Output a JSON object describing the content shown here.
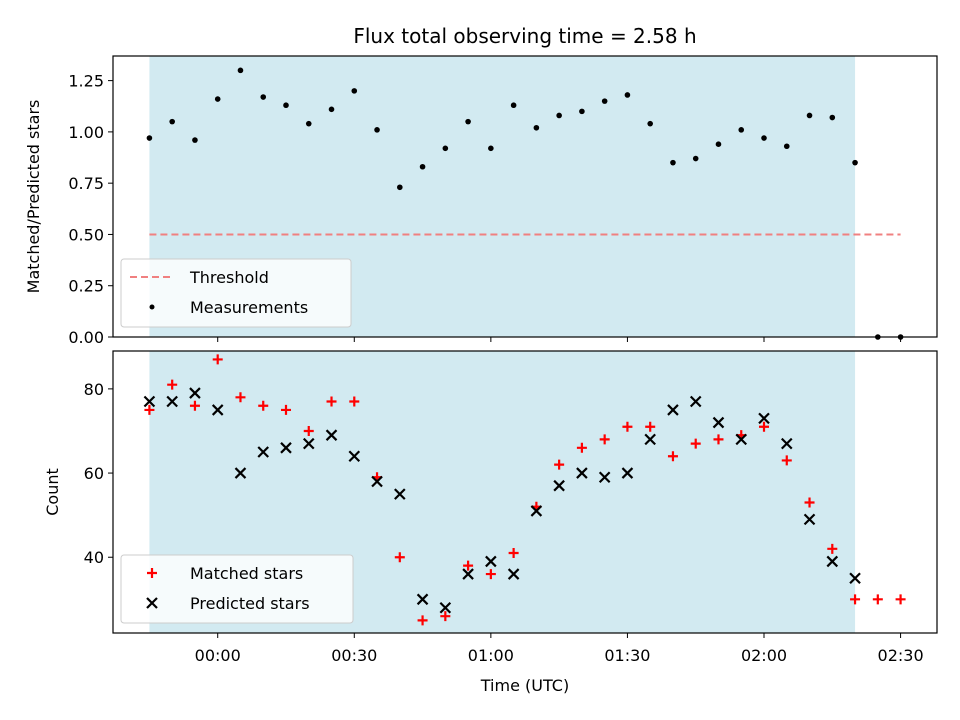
{
  "chart_data": [
    {
      "type": "scatter",
      "title": "Flux total observing time = 2.58 h",
      "xlabel": "",
      "ylabel": "Matched/Predicted stars",
      "x_unit": "minutes since 00:00 UTC",
      "xlim": [
        -23,
        158
      ],
      "ylim": [
        0,
        1.37
      ],
      "yticks": [
        0.0,
        0.25,
        0.5,
        0.75,
        1.0,
        1.25
      ],
      "ytick_labels": [
        "0.00",
        "0.25",
        "0.50",
        "0.75",
        "1.00",
        "1.25"
      ],
      "shaded_span": {
        "x0": -15,
        "x1": 140,
        "color": "#add8e6"
      },
      "threshold": {
        "name": "Threshold",
        "y": 0.5,
        "x0": -15,
        "x1": 150,
        "color": "#f08080"
      },
      "series": [
        {
          "name": "Measurements",
          "marker": "dot",
          "color": "#000000",
          "x": [
            -15,
            -10,
            -5,
            0,
            5,
            10,
            15,
            20,
            25,
            30,
            35,
            40,
            45,
            50,
            55,
            60,
            65,
            70,
            75,
            80,
            85,
            90,
            95,
            100,
            105,
            110,
            115,
            120,
            125,
            130,
            135,
            140,
            145,
            150
          ],
          "y": [
            0.97,
            1.05,
            0.96,
            1.16,
            1.3,
            1.17,
            1.13,
            1.04,
            1.11,
            1.2,
            1.01,
            0.73,
            0.83,
            0.92,
            1.05,
            0.92,
            1.13,
            1.02,
            1.08,
            1.1,
            1.15,
            1.18,
            1.04,
            0.85,
            0.87,
            0.94,
            1.01,
            0.97,
            0.93,
            1.08,
            1.07,
            0.85,
            0.0,
            0.0
          ]
        }
      ],
      "legend": {
        "placement": "lower-left",
        "entries": [
          "Threshold",
          "Measurements"
        ]
      }
    },
    {
      "type": "scatter",
      "title": "",
      "xlabel": "Time (UTC)",
      "ylabel": "Count",
      "x_unit": "minutes since 00:00 UTC",
      "xlim": [
        -23,
        158
      ],
      "ylim": [
        22,
        89
      ],
      "yticks": [
        40,
        60,
        80
      ],
      "ytick_labels": [
        "40",
        "60",
        "80"
      ],
      "xticks": [
        0,
        30,
        60,
        90,
        120,
        150
      ],
      "xtick_labels": [
        "00:00",
        "00:30",
        "01:00",
        "01:30",
        "02:00",
        "02:30"
      ],
      "shaded_span": {
        "x0": -15,
        "x1": 140,
        "color": "#add8e6"
      },
      "series": [
        {
          "name": "Matched stars",
          "marker": "plus",
          "color": "#ff0000",
          "x": [
            -15,
            -10,
            -5,
            0,
            5,
            10,
            15,
            20,
            25,
            30,
            35,
            40,
            45,
            50,
            55,
            60,
            65,
            70,
            75,
            80,
            85,
            90,
            95,
            100,
            105,
            110,
            115,
            120,
            125,
            130,
            135,
            140,
            145,
            150
          ],
          "y": [
            75,
            81,
            76,
            87,
            78,
            76,
            75,
            70,
            77,
            77,
            59,
            40,
            25,
            26,
            38,
            36,
            41,
            52,
            62,
            66,
            68,
            71,
            71,
            64,
            67,
            68,
            69,
            71,
            63,
            53,
            42,
            30,
            30,
            30
          ]
        },
        {
          "name": "Predicted stars",
          "marker": "x",
          "color": "#000000",
          "x": [
            -15,
            -10,
            -5,
            0,
            5,
            10,
            15,
            20,
            25,
            30,
            35,
            40,
            45,
            50,
            55,
            60,
            65,
            70,
            75,
            80,
            85,
            90,
            95,
            100,
            105,
            110,
            115,
            120,
            125,
            130,
            135,
            140
          ],
          "y": [
            77,
            77,
            79,
            75,
            60,
            65,
            66,
            67,
            69,
            64,
            58,
            55,
            30,
            28,
            36,
            39,
            36,
            51,
            57,
            60,
            59,
            60,
            68,
            75,
            77,
            72,
            68,
            73,
            67,
            49,
            39,
            35
          ]
        }
      ],
      "legend": {
        "placement": "lower-left",
        "entries": [
          "Matched stars",
          "Predicted stars"
        ]
      }
    }
  ]
}
